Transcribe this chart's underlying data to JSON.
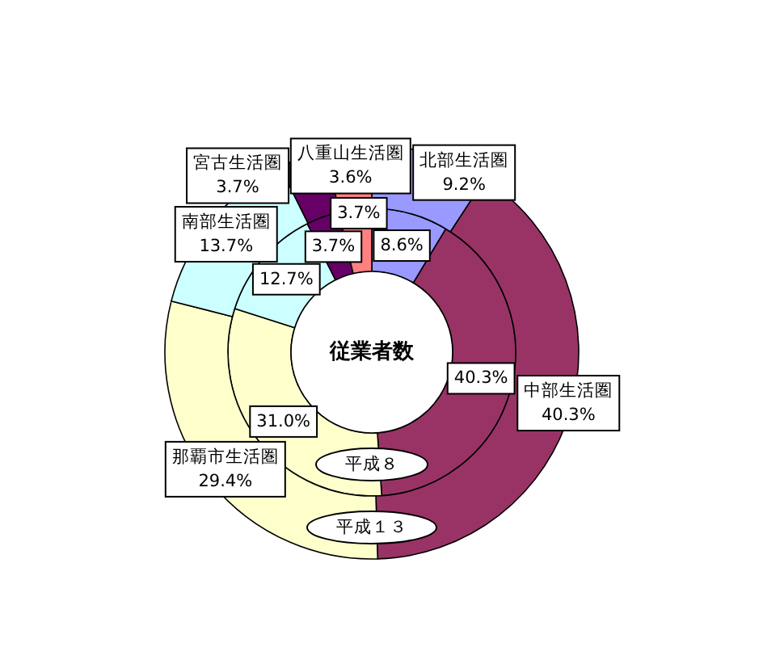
{
  "chart_data": {
    "type": "donut",
    "title": "従業者数",
    "categories": [
      "北部生活圏",
      "中部生活圏",
      "那覇市生活圏",
      "南部生活圏",
      "宮古生活圏",
      "八重山生活圏"
    ],
    "colors": [
      "#9999ff",
      "#993366",
      "#ffffcc",
      "#ccffff",
      "#660066",
      "#ff8080"
    ],
    "series": [
      {
        "name": "平成８",
        "values": [
          8.6,
          40.3,
          31.0,
          12.7,
          3.7,
          3.7
        ],
        "value_labels": [
          "8.6%",
          "40.3%",
          "31.0%",
          "12.7%",
          "3.7%",
          "3.7%"
        ]
      },
      {
        "name": "平成１３",
        "values": [
          9.2,
          40.3,
          29.4,
          13.7,
          3.7,
          3.6
        ],
        "value_labels": [
          "9.2%",
          "40.3%",
          "29.4%",
          "13.7%",
          "3.7%",
          "3.6%"
        ]
      }
    ]
  }
}
